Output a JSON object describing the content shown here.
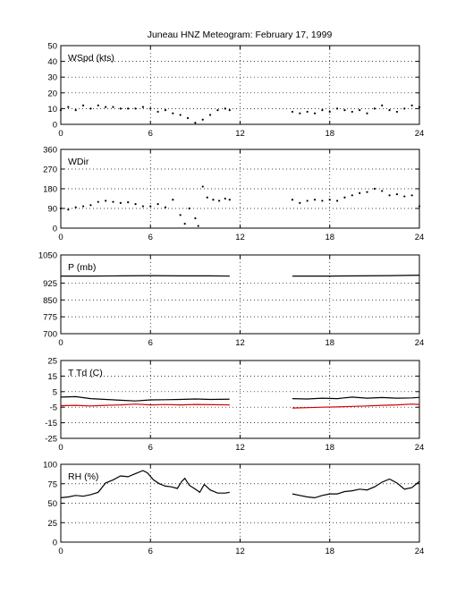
{
  "figure": {
    "title": "Juneau HNZ Meteogram:  February 17, 1999"
  },
  "chart_data": [
    {
      "type": "scatter",
      "id": "wspd",
      "label": "WSpd (kts)",
      "xlim": [
        0,
        24
      ],
      "xticks": [
        0,
        6,
        12,
        18,
        24
      ],
      "ylim": [
        0,
        50
      ],
      "yticks": [
        0,
        10,
        20,
        30,
        40,
        50
      ],
      "grid": true,
      "series": [
        {
          "color": "#000000",
          "style": "points",
          "points": [
            [
              0.0,
              9
            ],
            [
              0.5,
              11
            ],
            [
              1.0,
              9
            ],
            [
              1.5,
              12
            ],
            [
              2.0,
              10
            ],
            [
              2.5,
              12
            ],
            [
              3.0,
              11
            ],
            [
              3.5,
              11
            ],
            [
              4.0,
              10
            ],
            [
              4.5,
              10
            ],
            [
              5.0,
              10
            ],
            [
              5.5,
              11
            ],
            [
              6.0,
              10
            ],
            [
              6.5,
              8
            ],
            [
              7.0,
              9
            ],
            [
              7.5,
              7
            ],
            [
              8.0,
              6
            ],
            [
              8.5,
              4
            ],
            [
              9.0,
              1
            ],
            [
              9.5,
              3
            ],
            [
              10.0,
              6
            ],
            [
              10.5,
              9
            ],
            [
              11.0,
              10
            ],
            [
              11.3,
              9
            ],
            [
              null,
              null
            ],
            [
              15.5,
              8
            ],
            [
              16.0,
              7
            ],
            [
              16.5,
              8
            ],
            [
              17.0,
              7
            ],
            [
              17.5,
              9
            ],
            [
              18.0,
              8
            ],
            [
              18.5,
              10
            ],
            [
              19.0,
              9
            ],
            [
              19.5,
              8
            ],
            [
              20.0,
              9
            ],
            [
              20.5,
              7
            ],
            [
              21.0,
              10
            ],
            [
              21.5,
              12
            ],
            [
              22.0,
              9
            ],
            [
              22.5,
              8
            ],
            [
              23.0,
              10
            ],
            [
              23.5,
              12
            ],
            [
              24.0,
              11
            ]
          ]
        }
      ]
    },
    {
      "type": "scatter",
      "id": "wdir",
      "label": "WDir",
      "xlim": [
        0,
        24
      ],
      "xticks": [
        0,
        6,
        12,
        18,
        24
      ],
      "ylim": [
        0,
        360
      ],
      "yticks": [
        0,
        90,
        180,
        270,
        360
      ],
      "grid": true,
      "series": [
        {
          "color": "#000000",
          "style": "points",
          "points": [
            [
              0.0,
              90
            ],
            [
              0.5,
              85
            ],
            [
              1.0,
              95
            ],
            [
              1.5,
              100
            ],
            [
              2.0,
              105
            ],
            [
              2.5,
              120
            ],
            [
              3.0,
              125
            ],
            [
              3.5,
              120
            ],
            [
              4.0,
              115
            ],
            [
              4.5,
              118
            ],
            [
              5.0,
              110
            ],
            [
              5.5,
              100
            ],
            [
              6.0,
              100
            ],
            [
              6.5,
              110
            ],
            [
              7.0,
              95
            ],
            [
              7.5,
              130
            ],
            [
              8.0,
              60
            ],
            [
              8.3,
              20
            ],
            [
              8.6,
              90
            ],
            [
              9.0,
              45
            ],
            [
              9.2,
              10
            ],
            [
              9.5,
              190
            ],
            [
              9.8,
              140
            ],
            [
              10.2,
              130
            ],
            [
              10.6,
              125
            ],
            [
              11.0,
              135
            ],
            [
              11.3,
              130
            ],
            [
              null,
              null
            ],
            [
              15.5,
              130
            ],
            [
              16.0,
              115
            ],
            [
              16.5,
              125
            ],
            [
              17.0,
              130
            ],
            [
              17.5,
              125
            ],
            [
              18.0,
              130
            ],
            [
              18.5,
              125
            ],
            [
              19.0,
              140
            ],
            [
              19.5,
              150
            ],
            [
              20.0,
              160
            ],
            [
              20.5,
              165
            ],
            [
              21.0,
              180
            ],
            [
              21.5,
              170
            ],
            [
              22.0,
              150
            ],
            [
              22.5,
              155
            ],
            [
              23.0,
              145
            ],
            [
              23.5,
              150
            ],
            [
              24.0,
              100
            ]
          ]
        }
      ]
    },
    {
      "type": "line",
      "id": "pressure",
      "label": "P (mb)",
      "xlim": [
        0,
        24
      ],
      "xticks": [
        0,
        6,
        12,
        18,
        24
      ],
      "ylim": [
        700,
        1050
      ],
      "yticks": [
        700,
        775,
        850,
        925,
        1050
      ],
      "grid": true,
      "series": [
        {
          "color": "#000000",
          "style": "line",
          "points": [
            [
              0.0,
              956
            ],
            [
              2.0,
              956
            ],
            [
              4.0,
              957
            ],
            [
              6.0,
              958
            ],
            [
              8.0,
              957
            ],
            [
              10.0,
              957
            ],
            [
              11.3,
              956
            ],
            [
              null,
              null
            ],
            [
              15.5,
              956
            ],
            [
              18.0,
              956
            ],
            [
              20.0,
              957
            ],
            [
              22.0,
              958
            ],
            [
              24.0,
              960
            ]
          ]
        }
      ]
    },
    {
      "type": "line",
      "id": "temp",
      "label": "T Td (C)",
      "xlim": [
        0,
        24
      ],
      "xticks": [
        0,
        6,
        12,
        18,
        24
      ],
      "ylim": [
        -25,
        25
      ],
      "yticks": [
        -25,
        -15,
        -5,
        5,
        15,
        25
      ],
      "grid": true,
      "series": [
        {
          "color": "#000000",
          "style": "line",
          "points": [
            [
              0.0,
              1.5
            ],
            [
              1.0,
              1.8
            ],
            [
              2.0,
              0.5
            ],
            [
              3.0,
              0.0
            ],
            [
              4.0,
              -0.5
            ],
            [
              5.0,
              -1.0
            ],
            [
              6.0,
              -0.3
            ],
            [
              7.0,
              -0.2
            ],
            [
              8.0,
              0.0
            ],
            [
              9.0,
              0.3
            ],
            [
              10.0,
              0.0
            ],
            [
              11.3,
              0.2
            ],
            [
              null,
              null
            ],
            [
              15.5,
              0.5
            ],
            [
              16.5,
              0.3
            ],
            [
              17.5,
              0.8
            ],
            [
              18.5,
              0.5
            ],
            [
              19.5,
              1.5
            ],
            [
              20.5,
              0.8
            ],
            [
              21.5,
              1.2
            ],
            [
              22.5,
              0.8
            ],
            [
              23.5,
              1.0
            ],
            [
              24.0,
              1.3
            ]
          ]
        },
        {
          "color": "#d00000",
          "style": "line",
          "points": [
            [
              0.0,
              -4.0
            ],
            [
              1.0,
              -3.8
            ],
            [
              2.0,
              -4.2
            ],
            [
              3.0,
              -3.8
            ],
            [
              4.0,
              -3.5
            ],
            [
              5.0,
              -3.0
            ],
            [
              6.0,
              -3.5
            ],
            [
              7.0,
              -3.3
            ],
            [
              8.0,
              -3.5
            ],
            [
              9.0,
              -3.2
            ],
            [
              10.0,
              -3.4
            ],
            [
              11.3,
              -3.5
            ],
            [
              null,
              null
            ],
            [
              15.5,
              -5.5
            ],
            [
              16.5,
              -5.3
            ],
            [
              17.5,
              -5.0
            ],
            [
              18.5,
              -4.8
            ],
            [
              19.5,
              -4.5
            ],
            [
              20.5,
              -4.2
            ],
            [
              21.5,
              -3.8
            ],
            [
              22.5,
              -3.5
            ],
            [
              23.5,
              -3.0
            ],
            [
              24.0,
              -3.2
            ]
          ]
        }
      ]
    },
    {
      "type": "line",
      "id": "rh",
      "label": "RH (%)",
      "xlim": [
        0,
        24
      ],
      "xticks": [
        0,
        6,
        12,
        18,
        24
      ],
      "ylim": [
        0,
        100
      ],
      "yticks": [
        0,
        25,
        50,
        75,
        100
      ],
      "grid": true,
      "series": [
        {
          "color": "#000000",
          "style": "line",
          "points": [
            [
              0.0,
              57
            ],
            [
              0.5,
              58
            ],
            [
              1.0,
              60
            ],
            [
              1.5,
              59
            ],
            [
              2.0,
              61
            ],
            [
              2.5,
              64
            ],
            [
              3.0,
              76
            ],
            [
              3.5,
              80
            ],
            [
              4.0,
              85
            ],
            [
              4.5,
              84
            ],
            [
              5.0,
              88
            ],
            [
              5.5,
              92
            ],
            [
              5.8,
              89
            ],
            [
              6.2,
              80
            ],
            [
              6.6,
              75
            ],
            [
              7.0,
              72
            ],
            [
              7.4,
              71
            ],
            [
              7.8,
              69
            ],
            [
              8.1,
              78
            ],
            [
              8.3,
              82
            ],
            [
              8.6,
              73
            ],
            [
              9.0,
              68
            ],
            [
              9.3,
              64
            ],
            [
              9.6,
              74
            ],
            [
              10.0,
              67
            ],
            [
              10.5,
              63
            ],
            [
              11.0,
              63
            ],
            [
              11.3,
              64
            ],
            [
              null,
              null
            ],
            [
              15.5,
              62
            ],
            [
              16.0,
              60
            ],
            [
              16.5,
              58
            ],
            [
              17.0,
              57
            ],
            [
              17.5,
              60
            ],
            [
              18.0,
              62
            ],
            [
              18.5,
              62
            ],
            [
              19.0,
              65
            ],
            [
              19.5,
              66
            ],
            [
              20.0,
              68
            ],
            [
              20.5,
              67
            ],
            [
              21.0,
              71
            ],
            [
              21.5,
              77
            ],
            [
              22.0,
              81
            ],
            [
              22.5,
              76
            ],
            [
              23.0,
              68
            ],
            [
              23.5,
              70
            ],
            [
              24.0,
              78
            ]
          ]
        }
      ]
    }
  ]
}
